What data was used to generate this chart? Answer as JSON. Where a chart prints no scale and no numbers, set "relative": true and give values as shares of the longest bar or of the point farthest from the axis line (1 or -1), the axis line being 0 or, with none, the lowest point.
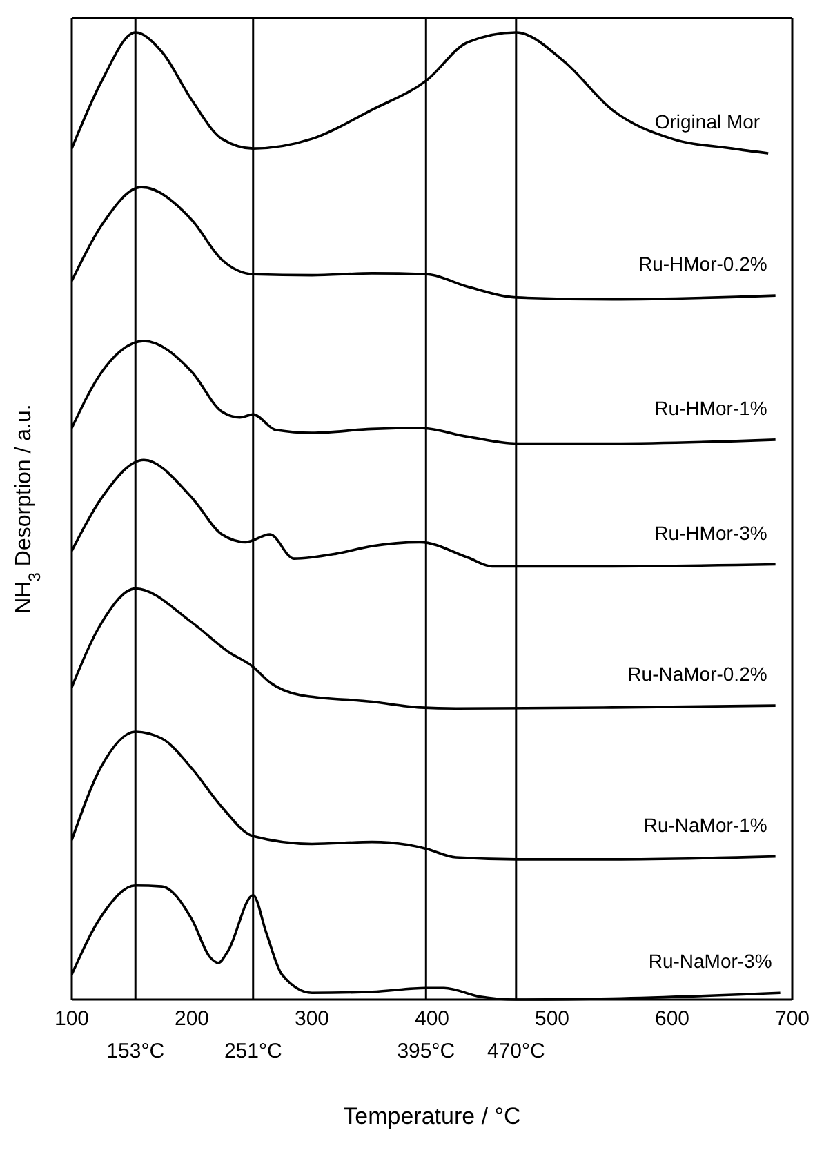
{
  "chart_data": {
    "type": "line",
    "relative": true,
    "xlabel": "Temperature / °C",
    "ylabel": "NH$_{3}$ Desorption / a.u.",
    "xlim": [
      100,
      700
    ],
    "xticks": [
      100,
      200,
      300,
      400,
      500,
      600,
      700
    ],
    "marker": "none",
    "line_style": "solid",
    "ref_lines": [
      {
        "axis": "x",
        "value": 153,
        "label": "153°C",
        "color": "#000000"
      },
      {
        "axis": "x",
        "value": 251,
        "label": "251°C",
        "color": "#000000"
      },
      {
        "axis": "x",
        "value": 395,
        "label": "395°C",
        "color": "#000000"
      },
      {
        "axis": "x",
        "value": 470,
        "label": "470°C",
        "color": "#000000"
      }
    ],
    "series": [
      {
        "name": "Original Mor",
        "color": "#000000",
        "x": [
          100,
          125,
          153,
          175,
          200,
          225,
          251,
          300,
          350,
          395,
          430,
          470,
          510,
          550,
          600,
          650,
          680
        ],
        "values": [
          0.88,
          0.95,
          1.0,
          0.98,
          0.93,
          0.89,
          0.88,
          0.89,
          0.92,
          0.95,
          0.99,
          1.0,
          0.97,
          0.92,
          0.89,
          0.88,
          0.875
        ]
      },
      {
        "name": "Ru-HMor-0.2%",
        "color": "#000000",
        "x": [
          100,
          125,
          158,
          200,
          225,
          251,
          300,
          350,
          395,
          430,
          470,
          550,
          686
        ],
        "values": [
          0.743,
          0.801,
          0.84,
          0.806,
          0.765,
          0.75,
          0.749,
          0.751,
          0.75,
          0.737,
          0.726,
          0.724,
          0.728
        ]
      },
      {
        "name": "Ru-HMor-1%",
        "color": "#000000",
        "x": [
          100,
          125,
          160,
          200,
          225,
          240,
          251,
          270,
          300,
          350,
          390,
          430,
          470,
          550,
          686
        ],
        "values": [
          0.591,
          0.649,
          0.681,
          0.649,
          0.608,
          0.602,
          0.605,
          0.589,
          0.586,
          0.59,
          0.591,
          0.582,
          0.575,
          0.575,
          0.579
        ]
      },
      {
        "name": "Ru-HMor-3%",
        "color": "#000000",
        "x": [
          100,
          125,
          160,
          200,
          225,
          245,
          265,
          285,
          320,
          350,
          390,
          430,
          450,
          550,
          686
        ],
        "values": [
          0.464,
          0.519,
          0.558,
          0.519,
          0.481,
          0.473,
          0.481,
          0.456,
          0.461,
          0.469,
          0.473,
          0.457,
          0.448,
          0.448,
          0.45
        ]
      },
      {
        "name": "Ru-NaMor-0.2%",
        "color": "#000000",
        "x": [
          100,
          125,
          153,
          200,
          230,
          251,
          265,
          290,
          350,
          390,
          420,
          550,
          686
        ],
        "values": [
          0.323,
          0.39,
          0.425,
          0.39,
          0.36,
          0.344,
          0.328,
          0.315,
          0.308,
          0.302,
          0.301,
          0.302,
          0.304
        ]
      },
      {
        "name": "Ru-NaMor-1%",
        "color": "#000000",
        "x": [
          100,
          125,
          153,
          175,
          200,
          225,
          251,
          300,
          350,
          380,
          395,
          420,
          470,
          550,
          686
        ],
        "values": [
          0.165,
          0.242,
          0.277,
          0.27,
          0.239,
          0.199,
          0.169,
          0.161,
          0.163,
          0.16,
          0.156,
          0.147,
          0.145,
          0.145,
          0.148
        ]
      },
      {
        "name": "Ru-NaMor-3%",
        "color": "#000000",
        "x": [
          100,
          125,
          153,
          175,
          200,
          215,
          222,
          230,
          251,
          262,
          275,
          300,
          350,
          395,
          410,
          440,
          470,
          550,
          690
        ],
        "values": [
          0.026,
          0.087,
          0.118,
          0.117,
          0.083,
          0.044,
          0.038,
          0.05,
          0.108,
          0.069,
          0.026,
          0.007,
          0.008,
          0.012,
          0.012,
          0.003,
          0.0,
          0.001,
          0.007
        ]
      }
    ]
  }
}
